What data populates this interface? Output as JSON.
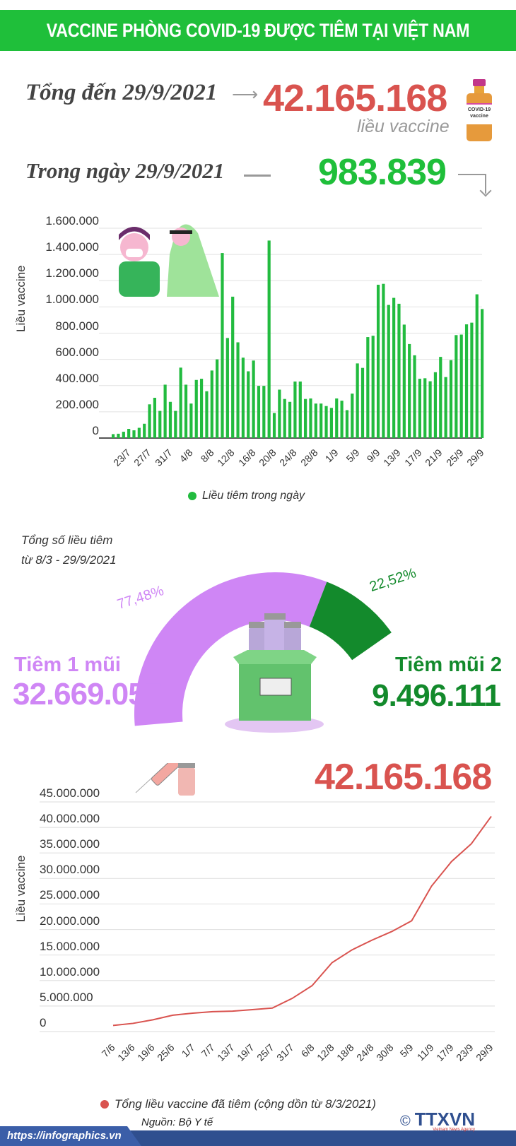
{
  "header": {
    "title": "VACCINE PHÒNG COVID-19 ĐƯỢC TIÊM TẠI VIỆT NAM"
  },
  "summary": {
    "total_label": "Tổng đến 29/9/2021",
    "total_value": "42.165.168",
    "total_unit": "liều vaccine",
    "daily_label": "Trong ngày 29/9/2021",
    "daily_value": "983.839",
    "vial_text": "COVID-19 vaccine"
  },
  "colors": {
    "green": "#1fbf3a",
    "red": "#d9534f",
    "purple": "#cf86f5",
    "dark_green": "#138a2c",
    "footer_blue": "#3b5ea8"
  },
  "icons": [
    "vaccine-vial-icon",
    "nurse-vaccinating-patient-illustration",
    "syringe-icon",
    "vaccine-box-icon",
    "ttxvn-logo"
  ],
  "chart_data": [
    {
      "type": "bar",
      "ylabel": "Liều vaccine",
      "ylim": [
        0,
        1600000
      ],
      "yticks": [
        "0",
        "200.000",
        "400.000",
        "600.000",
        "800.000",
        "1.000.000",
        "1.200.000",
        "1.400.000",
        "1.600.000"
      ],
      "grid": true,
      "legend": "bottom",
      "series": [
        {
          "name": "Liều tiêm trong ngày",
          "color": "#22bb3f",
          "values": [
            30000,
            33000,
            48000,
            70000,
            59000,
            78000,
            109000,
            257000,
            307000,
            207000,
            407000,
            276000,
            207000,
            537000,
            407000,
            263000,
            443000,
            452000,
            357000,
            515000,
            600000,
            1411000,
            763000,
            1078000,
            730000,
            613000,
            509000,
            591000,
            398000,
            398000,
            1506000,
            191000,
            369000,
            298000,
            276000,
            431000,
            431000,
            298000,
            302000,
            263000,
            263000,
            244000,
            230000,
            302000,
            285000,
            213000,
            339000,
            569000,
            535000,
            770000,
            780000,
            1169000,
            1176000,
            1015000,
            1069000,
            1024000,
            865000,
            717000,
            631000,
            452000,
            456000,
            433000,
            502000,
            619000,
            465000,
            594000,
            785000,
            789000,
            867000,
            880000,
            1096000,
            983839
          ]
        }
      ],
      "categories": [
        "20/7",
        "21/7",
        "22/7",
        "23/7",
        "24/7",
        "25/7",
        "26/7",
        "27/7",
        "28/7",
        "29/7",
        "30/7",
        "31/7",
        "1/8",
        "2/8",
        "3/8",
        "4/8",
        "5/8",
        "6/8",
        "7/8",
        "8/8",
        "9/8",
        "10/8",
        "11/8",
        "12/8",
        "13/8",
        "14/8",
        "15/8",
        "16/8",
        "17/8",
        "18/8",
        "19/8",
        "20/8",
        "21/8",
        "22/8",
        "23/8",
        "24/8",
        "25/8",
        "26/8",
        "27/8",
        "28/8",
        "29/8",
        "30/8",
        "31/8",
        "1/9",
        "2/9",
        "3/9",
        "4/9",
        "5/9",
        "6/9",
        "7/9",
        "8/9",
        "9/9",
        "10/9",
        "11/9",
        "12/9",
        "13/9",
        "14/9",
        "15/9",
        "16/9",
        "17/9",
        "18/9",
        "19/9",
        "20/9",
        "21/9",
        "22/9",
        "23/9",
        "24/9",
        "25/9",
        "26/9",
        "27/9",
        "28/9",
        "29/9"
      ],
      "xticks": [
        "23/7",
        "27/7",
        "31/7",
        "4/8",
        "8/8",
        "12/8",
        "16/8",
        "20/8",
        "24/8",
        "28/8",
        "1/9",
        "5/9",
        "9/9",
        "13/9",
        "17/9",
        "21/9",
        "25/9",
        "29/9"
      ]
    },
    {
      "type": "pie",
      "title": "Tổng số liều tiêm",
      "subtitle": "từ 8/3 - 29/9/2021",
      "slices": [
        {
          "name": "Tiêm 1 mũi",
          "value": 32669057,
          "value_label": "32.669.057",
          "percent": 77.48,
          "percent_label": "77,48%",
          "color": "#cf86f5"
        },
        {
          "name": "Tiêm mũi 2",
          "value": 9496111,
          "value_label": "9.496.111",
          "percent": 22.52,
          "percent_label": "22,52%",
          "color": "#138a2c"
        }
      ]
    },
    {
      "type": "line",
      "annotation": "42.165.168",
      "ylabel": "Liều vaccine",
      "ylim": [
        0,
        45000000
      ],
      "yticks": [
        "0",
        "5.000.000",
        "10.000.000",
        "15.000.000",
        "20.000.000",
        "25.000.000",
        "30.000.000",
        "35.000.000",
        "40.000.000",
        "45.000.000"
      ],
      "grid": true,
      "legend": "bottom",
      "xticks": [
        "7/6",
        "13/6",
        "19/6",
        "25/6",
        "1/7",
        "7/7",
        "13/7",
        "19/7",
        "25/7",
        "31/7",
        "6/8",
        "12/8",
        "18/8",
        "24/8",
        "30/8",
        "5/9",
        "11/9",
        "17/9",
        "23/9",
        "29/9"
      ],
      "series": [
        {
          "name": "Tổng liều vaccine đã tiêm (cộng dồn từ 8/3/2021)",
          "color": "#d9534f",
          "x": [
            "7/6",
            "13/6",
            "19/6",
            "25/6",
            "1/7",
            "7/7",
            "13/7",
            "19/7",
            "25/7",
            "31/7",
            "6/8",
            "12/8",
            "18/8",
            "24/8",
            "30/8",
            "5/9",
            "11/9",
            "17/9",
            "23/9",
            "29/9"
          ],
          "y": [
            1200000,
            1600000,
            2300000,
            3200000,
            3600000,
            3900000,
            4000000,
            4300000,
            4600000,
            6500000,
            9000000,
            13500000,
            16000000,
            17900000,
            19600000,
            21700000,
            28500000,
            33300000,
            36800000,
            42165168
          ]
        }
      ]
    }
  ],
  "footer": {
    "source": "Nguồn: Bộ Y tế",
    "url": "https://infographics.vn",
    "copyright": "©",
    "logo_text": "TTXVN",
    "logo_sub": "Vietnam News Agency"
  }
}
